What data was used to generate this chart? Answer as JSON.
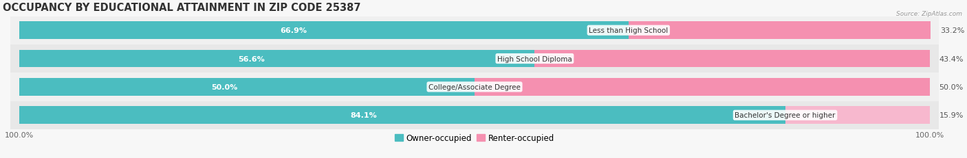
{
  "title": "OCCUPANCY BY EDUCATIONAL ATTAINMENT IN ZIP CODE 25387",
  "source": "Source: ZipAtlas.com",
  "categories": [
    "Less than High School",
    "High School Diploma",
    "College/Associate Degree",
    "Bachelor's Degree or higher"
  ],
  "owner_pct": [
    66.9,
    56.6,
    50.0,
    84.1
  ],
  "renter_pct": [
    33.2,
    43.4,
    50.0,
    15.9
  ],
  "owner_color": "#4BBDC0",
  "renter_color": "#F590B0",
  "renter_color_light": "#F7B8CE",
  "bg_color": "#f7f7f7",
  "row_bg_even": "#f0f0f0",
  "row_bg_odd": "#e8e8e8",
  "title_fontsize": 10.5,
  "label_fontsize": 8,
  "tick_fontsize": 8,
  "legend_fontsize": 8.5,
  "axis_label_pct": "100.0%",
  "bar_height": 0.62
}
